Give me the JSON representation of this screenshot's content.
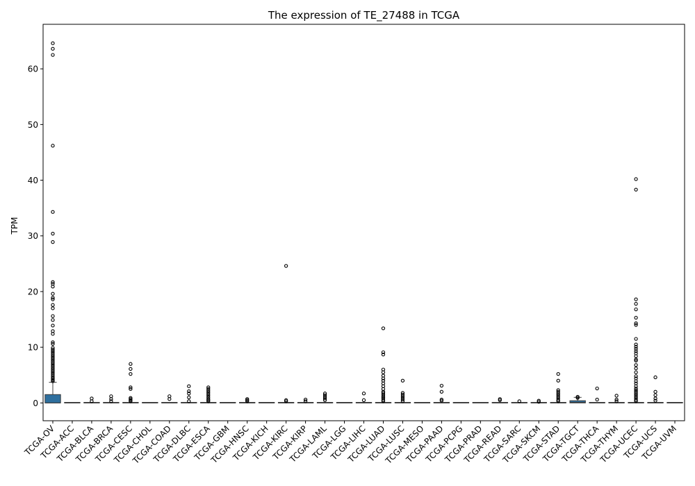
{
  "chart_data": {
    "type": "box",
    "title": "The expression of TE_27488 in TCGA",
    "xlabel": "",
    "ylabel": "TPM",
    "ylim": [
      -3.2,
      68
    ],
    "yticks": [
      0,
      10,
      20,
      30,
      40,
      50,
      60
    ],
    "grid": false,
    "legend": "none",
    "colors": {
      "box": "#2e6f9e",
      "line": "#3a3a3a",
      "outlier_edge": "#000000"
    },
    "categories": [
      "TCGA-OV",
      "TCGA-ACC",
      "TCGA-BLCA",
      "TCGA-BRCA",
      "TCGA-CESC",
      "TCGA-CHOL",
      "TCGA-COAD",
      "TCGA-DLBC",
      "TCGA-ESCA",
      "TCGA-GBM",
      "TCGA-HNSC",
      "TCGA-KICH",
      "TCGA-KIRC",
      "TCGA-KIRP",
      "TCGA-LAML",
      "TCGA-LGG",
      "TCGA-LIHC",
      "TCGA-LUAD",
      "TCGA-LUSC",
      "TCGA-MESO",
      "TCGA-PAAD",
      "TCGA-PCPG",
      "TCGA-PRAD",
      "TCGA-READ",
      "TCGA-SARC",
      "TCGA-SKCM",
      "TCGA-STAD",
      "TCGA-TGCT",
      "TCGA-THCA",
      "TCGA-THYM",
      "TCGA-UCEC",
      "TCGA-UCS",
      "TCGA-UVM"
    ],
    "boxes": [
      {
        "q1": 0,
        "median": 0,
        "q3": 1.5,
        "whisker_low": 0,
        "whisker_high": 3.7,
        "outliers": [
          64.6,
          63.6,
          62.5,
          46.2,
          34.3,
          30.4,
          28.9,
          21.7,
          21.4,
          20.9,
          19.6,
          18.9,
          18.6,
          17.6,
          17.0,
          15.6,
          14.9,
          13.9,
          12.9,
          12.4,
          10.9,
          10.6,
          9.9,
          9.6,
          9.3,
          9.0,
          8.7,
          8.4,
          8.1,
          7.8,
          7.5,
          7.2,
          6.9,
          6.6,
          6.3,
          6.0,
          5.7,
          5.4,
          5.1,
          4.8,
          4.5,
          4.3,
          4.1,
          3.9
        ]
      },
      {
        "q1": 0,
        "median": 0,
        "q3": 0,
        "whisker_low": 0,
        "whisker_high": 0,
        "outliers": []
      },
      {
        "q1": 0,
        "median": 0,
        "q3": 0,
        "whisker_low": 0,
        "whisker_high": 0,
        "outliers": [
          0.8,
          0.3
        ]
      },
      {
        "q1": 0,
        "median": 0,
        "q3": 0,
        "whisker_low": 0,
        "whisker_high": 0,
        "outliers": [
          1.2,
          0.7,
          0.3
        ]
      },
      {
        "q1": 0,
        "median": 0,
        "q3": 0,
        "whisker_low": 0,
        "whisker_high": 0,
        "outliers": [
          7.0,
          6.1,
          5.2,
          2.8,
          2.5,
          0.9,
          0.7,
          0.5,
          0.3
        ]
      },
      {
        "q1": 0,
        "median": 0,
        "q3": 0,
        "whisker_low": 0,
        "whisker_high": 0,
        "outliers": []
      },
      {
        "q1": 0,
        "median": 0,
        "q3": 0,
        "whisker_low": 0,
        "whisker_high": 0,
        "outliers": [
          1.2,
          0.7
        ]
      },
      {
        "q1": 0,
        "median": 0,
        "q3": 0,
        "whisker_low": 0,
        "whisker_high": 0,
        "outliers": [
          3.0,
          2.1,
          1.7,
          1.0,
          0.3
        ]
      },
      {
        "q1": 0,
        "median": 0,
        "q3": 0,
        "whisker_low": 0,
        "whisker_high": 0,
        "outliers": [
          2.8,
          2.5,
          2.2,
          1.9,
          1.6,
          1.3,
          1.0,
          0.7,
          0.5,
          0.3
        ]
      },
      {
        "q1": 0,
        "median": 0,
        "q3": 0,
        "whisker_low": 0,
        "whisker_high": 0,
        "outliers": []
      },
      {
        "q1": 0,
        "median": 0,
        "q3": 0,
        "whisker_low": 0,
        "whisker_high": 0,
        "outliers": [
          0.7,
          0.5,
          0.3
        ]
      },
      {
        "q1": 0,
        "median": 0,
        "q3": 0,
        "whisker_low": 0,
        "whisker_high": 0,
        "outliers": []
      },
      {
        "q1": 0,
        "median": 0,
        "q3": 0,
        "whisker_low": 0,
        "whisker_high": 0,
        "outliers": [
          24.6,
          0.5,
          0.3
        ]
      },
      {
        "q1": 0,
        "median": 0,
        "q3": 0,
        "whisker_low": 0,
        "whisker_high": 0,
        "outliers": [
          0.6,
          0.3
        ]
      },
      {
        "q1": 0,
        "median": 0,
        "q3": 0,
        "whisker_low": 0,
        "whisker_high": 0,
        "outliers": [
          1.7,
          1.4,
          1.1,
          0.8,
          0.5
        ]
      },
      {
        "q1": 0,
        "median": 0,
        "q3": 0,
        "whisker_low": 0,
        "whisker_high": 0,
        "outliers": []
      },
      {
        "q1": 0,
        "median": 0,
        "q3": 0,
        "whisker_low": 0,
        "whisker_high": 0,
        "outliers": [
          1.7,
          0.5
        ]
      },
      {
        "q1": 0,
        "median": 0,
        "q3": 0,
        "whisker_low": 0,
        "whisker_high": 0,
        "outliers": [
          13.4,
          9.1,
          8.7,
          6.0,
          5.5,
          4.9,
          4.4,
          4.0,
          3.5,
          3.0,
          2.5,
          2.0,
          1.8,
          1.5,
          1.2,
          1.0,
          0.8,
          0.5,
          0.3
        ]
      },
      {
        "q1": 0,
        "median": 0,
        "q3": 0,
        "whisker_low": 0,
        "whisker_high": 0,
        "outliers": [
          4.0,
          1.8,
          1.5,
          1.2,
          0.9,
          0.6,
          0.3
        ]
      },
      {
        "q1": 0,
        "median": 0,
        "q3": 0,
        "whisker_low": 0,
        "whisker_high": 0,
        "outliers": []
      },
      {
        "q1": 0,
        "median": 0,
        "q3": 0,
        "whisker_low": 0,
        "whisker_high": 0,
        "outliers": [
          3.1,
          2.0,
          0.6,
          0.4
        ]
      },
      {
        "q1": 0,
        "median": 0,
        "q3": 0,
        "whisker_low": 0,
        "whisker_high": 0,
        "outliers": []
      },
      {
        "q1": 0,
        "median": 0,
        "q3": 0,
        "whisker_low": 0,
        "whisker_high": 0,
        "outliers": []
      },
      {
        "q1": 0,
        "median": 0,
        "q3": 0,
        "whisker_low": 0,
        "whisker_high": 0,
        "outliers": [
          0.7,
          0.5
        ]
      },
      {
        "q1": 0,
        "median": 0,
        "q3": 0,
        "whisker_low": 0,
        "whisker_high": 0,
        "outliers": [
          0.3
        ]
      },
      {
        "q1": 0,
        "median": 0,
        "q3": 0,
        "whisker_low": 0,
        "whisker_high": 0,
        "outliers": [
          0.4,
          0.2
        ]
      },
      {
        "q1": 0,
        "median": 0,
        "q3": 0,
        "whisker_low": 0,
        "whisker_high": 0,
        "outliers": [
          5.2,
          4.0,
          2.3,
          2.0,
          1.7,
          1.4,
          1.1,
          0.8,
          0.5,
          0.3
        ]
      },
      {
        "q1": 0,
        "median": 0.1,
        "q3": 0.4,
        "whisker_low": 0,
        "whisker_high": 1.0,
        "outliers": [
          1.1,
          0.9
        ]
      },
      {
        "q1": 0,
        "median": 0,
        "q3": 0,
        "whisker_low": 0,
        "whisker_high": 0,
        "outliers": [
          2.6,
          0.6
        ]
      },
      {
        "q1": 0,
        "median": 0,
        "q3": 0,
        "whisker_low": 0,
        "whisker_high": 0,
        "outliers": [
          1.3,
          0.6,
          0.3
        ]
      },
      {
        "q1": 0,
        "median": 0,
        "q3": 0,
        "whisker_low": 0,
        "whisker_high": 0,
        "outliers": [
          40.2,
          38.3,
          18.6,
          17.8,
          16.8,
          15.3,
          14.3,
          14.0,
          11.5,
          10.5,
          10.1,
          9.7,
          9.3,
          8.9,
          8.4,
          7.8,
          7.6,
          6.8,
          6.2,
          5.5,
          4.8,
          4.4,
          3.9,
          3.5,
          3.0,
          2.6,
          2.3,
          2.0,
          1.7,
          1.4,
          1.1,
          0.8,
          0.5,
          0.3
        ]
      },
      {
        "q1": 0,
        "median": 0,
        "q3": 0,
        "whisker_low": 0,
        "whisker_high": 0,
        "outliers": [
          4.6,
          2.0,
          1.4,
          0.8,
          0.4
        ]
      },
      {
        "q1": 0,
        "median": 0,
        "q3": 0,
        "whisker_low": 0,
        "whisker_high": 0,
        "outliers": []
      }
    ]
  }
}
